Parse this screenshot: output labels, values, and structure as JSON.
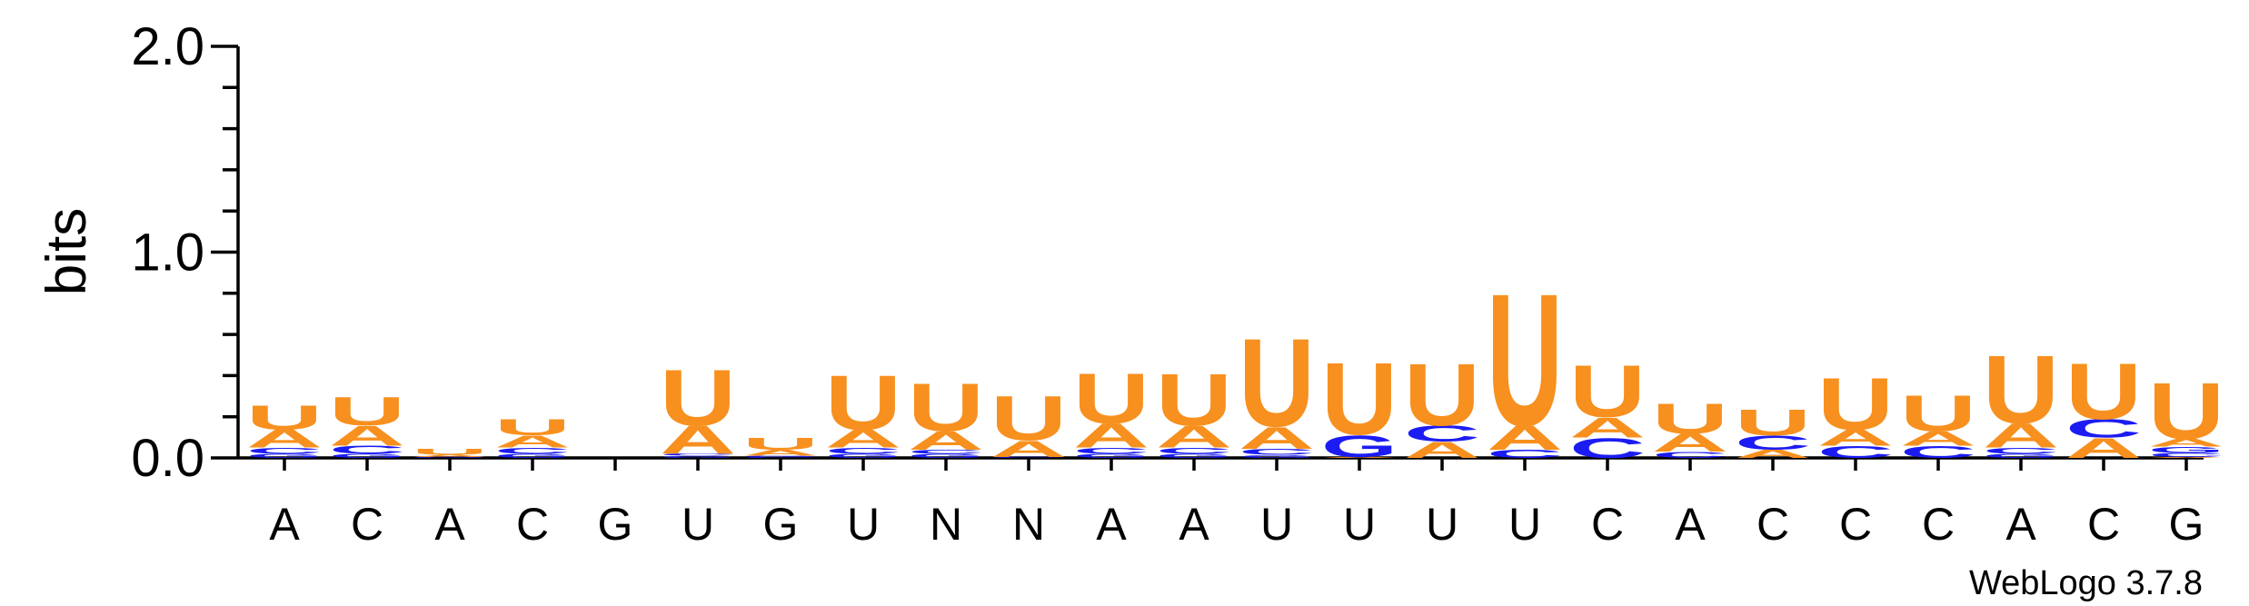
{
  "chart_data": {
    "type": "sequence-logo",
    "ylabel": "bits",
    "ylim": [
      0,
      2.0
    ],
    "yticks": [
      "0.0",
      "1.0",
      "2.0"
    ],
    "credit": "WebLogo 3.7.8",
    "colors": {
      "U": "#f7901e",
      "A": "#f7901e",
      "C": "#1c1cf2",
      "G": "#1c1cf2"
    },
    "positions": [
      {
        "label": "A",
        "stack": [
          {
            "l": "G",
            "h": 0.02
          },
          {
            "l": "C",
            "h": 0.03
          },
          {
            "l": "A",
            "h": 0.09
          },
          {
            "l": "U",
            "h": 0.12
          }
        ]
      },
      {
        "label": "C",
        "stack": [
          {
            "l": "G",
            "h": 0.02
          },
          {
            "l": "C",
            "h": 0.04
          },
          {
            "l": "A",
            "h": 0.1
          },
          {
            "l": "U",
            "h": 0.14
          }
        ]
      },
      {
        "label": "A",
        "stack": [
          {
            "l": "G",
            "h": 0.005
          },
          {
            "l": "A",
            "h": 0.01
          },
          {
            "l": "U",
            "h": 0.03
          }
        ]
      },
      {
        "label": "C",
        "stack": [
          {
            "l": "G",
            "h": 0.02
          },
          {
            "l": "C",
            "h": 0.03
          },
          {
            "l": "A",
            "h": 0.06
          },
          {
            "l": "U",
            "h": 0.08
          }
        ]
      },
      {
        "label": "G",
        "stack": []
      },
      {
        "label": "U",
        "stack": [
          {
            "l": "G",
            "h": 0.01
          },
          {
            "l": "C",
            "h": 0.01
          },
          {
            "l": "A",
            "h": 0.14
          },
          {
            "l": "U",
            "h": 0.28
          }
        ]
      },
      {
        "label": "G",
        "stack": [
          {
            "l": "C",
            "h": 0.005
          },
          {
            "l": "G",
            "h": 0.005
          },
          {
            "l": "A",
            "h": 0.03
          },
          {
            "l": "U",
            "h": 0.06
          }
        ]
      },
      {
        "label": "U",
        "stack": [
          {
            "l": "G",
            "h": 0.02
          },
          {
            "l": "C",
            "h": 0.03
          },
          {
            "l": "A",
            "h": 0.09
          },
          {
            "l": "U",
            "h": 0.27
          }
        ]
      },
      {
        "label": "N",
        "stack": [
          {
            "l": "G",
            "h": 0.02
          },
          {
            "l": "C",
            "h": 0.02
          },
          {
            "l": "A",
            "h": 0.09
          },
          {
            "l": "U",
            "h": 0.24
          }
        ]
      },
      {
        "label": "N",
        "stack": [
          {
            "l": "C",
            "h": 0.005
          },
          {
            "l": "A",
            "h": 0.08
          },
          {
            "l": "U",
            "h": 0.22
          }
        ]
      },
      {
        "label": "A",
        "stack": [
          {
            "l": "G",
            "h": 0.02
          },
          {
            "l": "C",
            "h": 0.03
          },
          {
            "l": "A",
            "h": 0.12
          },
          {
            "l": "U",
            "h": 0.25
          }
        ]
      },
      {
        "label": "A",
        "stack": [
          {
            "l": "G",
            "h": 0.02
          },
          {
            "l": "C",
            "h": 0.03
          },
          {
            "l": "A",
            "h": 0.11
          },
          {
            "l": "U",
            "h": 0.26
          }
        ]
      },
      {
        "label": "U",
        "stack": [
          {
            "l": "G",
            "h": 0.015
          },
          {
            "l": "C",
            "h": 0.03
          },
          {
            "l": "A",
            "h": 0.11
          },
          {
            "l": "U",
            "h": 0.44
          }
        ]
      },
      {
        "label": "U",
        "stack": [
          {
            "l": "A",
            "h": 0.005
          },
          {
            "l": "G",
            "h": 0.11
          },
          {
            "l": "U",
            "h": 0.36
          }
        ]
      },
      {
        "label": "U",
        "stack": [
          {
            "l": "A",
            "h": 0.08
          },
          {
            "l": "C",
            "h": 0.08
          },
          {
            "l": "U",
            "h": 0.31
          }
        ]
      },
      {
        "label": "U",
        "stack": [
          {
            "l": "C",
            "h": 0.04
          },
          {
            "l": "A",
            "h": 0.12
          },
          {
            "l": "U",
            "h": 0.66
          }
        ]
      },
      {
        "label": "C",
        "stack": [
          {
            "l": "C",
            "h": 0.1
          },
          {
            "l": "A",
            "h": 0.1
          },
          {
            "l": "U",
            "h": 0.26
          }
        ]
      },
      {
        "label": "A",
        "stack": [
          {
            "l": "C",
            "h": 0.03
          },
          {
            "l": "A",
            "h": 0.09
          },
          {
            "l": "U",
            "h": 0.15
          }
        ]
      },
      {
        "label": "C",
        "stack": [
          {
            "l": "A",
            "h": 0.04
          },
          {
            "l": "C",
            "h": 0.07
          },
          {
            "l": "U",
            "h": 0.13
          }
        ]
      },
      {
        "label": "C",
        "stack": [
          {
            "l": "C",
            "h": 0.06
          },
          {
            "l": "A",
            "h": 0.08
          },
          {
            "l": "U",
            "h": 0.26
          }
        ]
      },
      {
        "label": "C",
        "stack": [
          {
            "l": "C",
            "h": 0.06
          },
          {
            "l": "A",
            "h": 0.07
          },
          {
            "l": "U",
            "h": 0.18
          }
        ]
      },
      {
        "label": "A",
        "stack": [
          {
            "l": "G",
            "h": 0.02
          },
          {
            "l": "C",
            "h": 0.03
          },
          {
            "l": "A",
            "h": 0.12
          },
          {
            "l": "U",
            "h": 0.34
          }
        ]
      },
      {
        "label": "C",
        "stack": [
          {
            "l": "A",
            "h": 0.1
          },
          {
            "l": "C",
            "h": 0.09
          },
          {
            "l": "U",
            "h": 0.28
          }
        ]
      },
      {
        "label": "G",
        "stack": [
          {
            "l": "A",
            "h": 0.005
          },
          {
            "l": "C",
            "h": 0.02
          },
          {
            "l": "G",
            "h": 0.03
          },
          {
            "l": "A",
            "h": 0.04
          },
          {
            "l": "U",
            "h": 0.28
          }
        ]
      }
    ]
  }
}
